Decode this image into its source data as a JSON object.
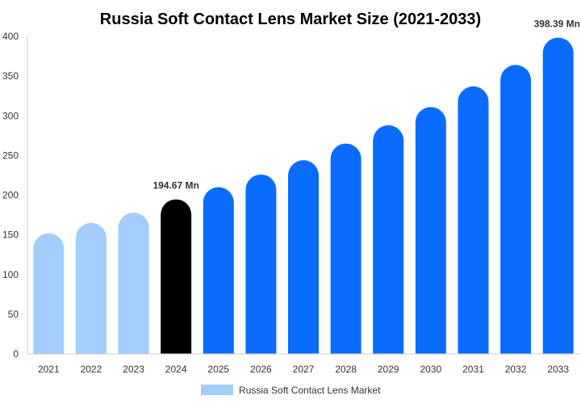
{
  "chart_data": {
    "type": "bar",
    "title": "Russia Soft Contact Lens Market Size (2021-2033)",
    "categories": [
      "2021",
      "2022",
      "2023",
      "2024",
      "2025",
      "2026",
      "2027",
      "2028",
      "2029",
      "2030",
      "2031",
      "2032",
      "2033"
    ],
    "series": [
      {
        "name": "Russia Soft Contact Lens Market",
        "values": [
          152,
          165,
          178,
          194.67,
          210,
          226,
          244,
          265,
          288,
          311,
          337,
          364,
          398.39
        ]
      }
    ],
    "ylim": [
      0,
      400
    ],
    "yticks": [
      0,
      50,
      100,
      150,
      200,
      250,
      300,
      350,
      400
    ],
    "xlabel": "",
    "ylabel": "",
    "grid": false,
    "legend_position": "bottom",
    "data_labels": [
      {
        "category": "2024",
        "text": "194.67 Mn"
      },
      {
        "category": "2033",
        "text": "398.39 Mn"
      }
    ],
    "colors": {
      "historic": "#a3cdfc",
      "current": "#000000",
      "forecast": "#0a6cff",
      "legend_swatch": "#a3cdfc",
      "axis": "#cccccc"
    },
    "bar_color_groups": [
      "historic",
      "historic",
      "historic",
      "current",
      "forecast",
      "forecast",
      "forecast",
      "forecast",
      "forecast",
      "forecast",
      "forecast",
      "forecast",
      "forecast"
    ]
  }
}
